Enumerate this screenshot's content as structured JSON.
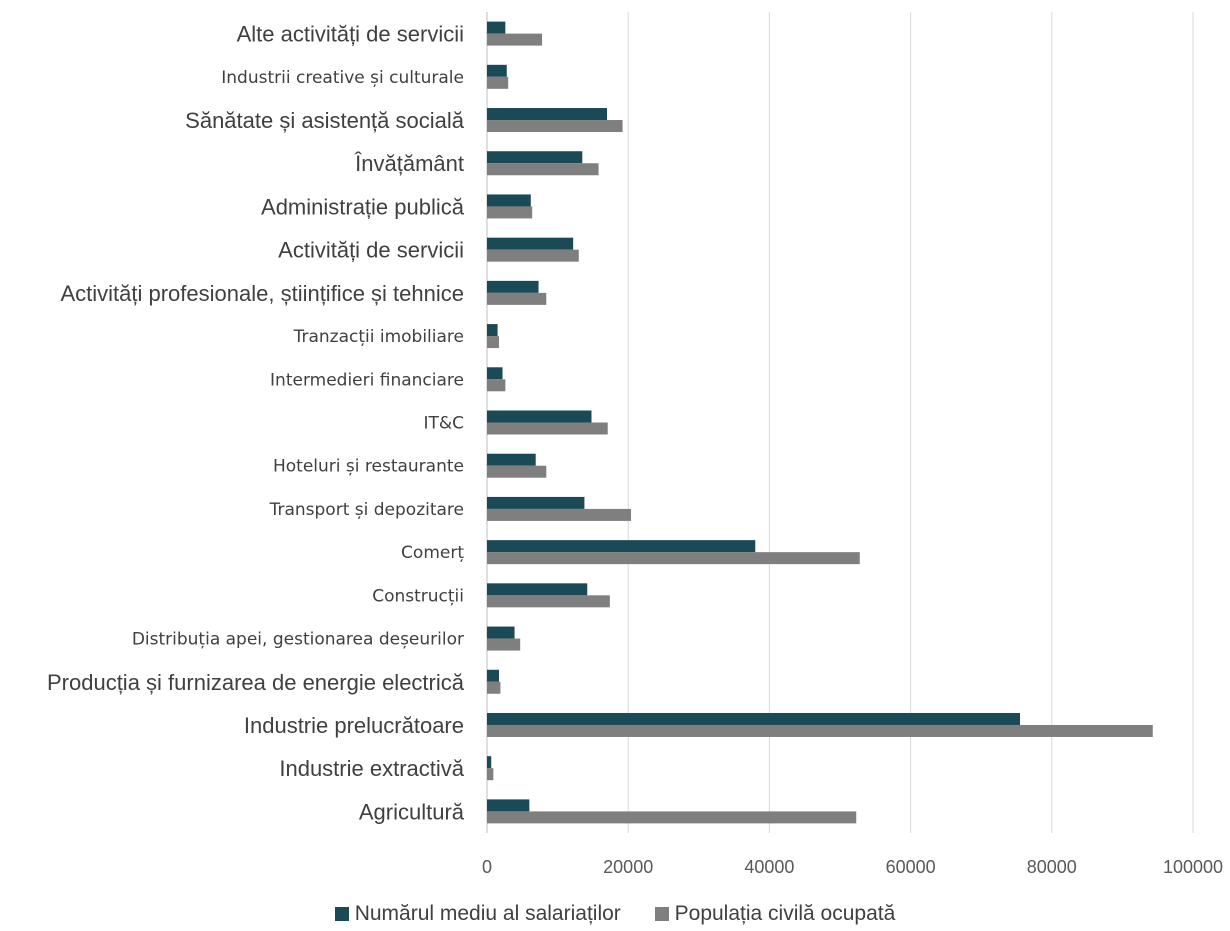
{
  "chart_data": {
    "type": "bar",
    "orientation": "horizontal",
    "categories": [
      "Alte activități de servicii",
      "Industrii creative și culturale",
      "Sănătate și asistență socială",
      "Învățământ",
      "Administrație publică",
      "Activități de servicii",
      "Activități profesionale, științifice și tehnice",
      "Tranzacții imobiliare",
      "Intermedieri financiare",
      "IT&C",
      "Hoteluri și restaurante",
      "Transport și depozitare",
      "Comerț",
      "Construcții",
      "Distribuția apei, gestionarea deșeurilor",
      "Producția și furnizarea de energie electrică",
      "Industrie prelucrătoare",
      "Industrie extractivă",
      "Agricultură"
    ],
    "series": [
      {
        "name": "Numărul mediu al salariaților",
        "color": "#1b4a57",
        "values": [
          2600,
          2800,
          17000,
          13500,
          6200,
          12200,
          7300,
          1500,
          2200,
          14800,
          6900,
          13800,
          38000,
          14200,
          3900,
          1700,
          75500,
          600,
          6000
        ]
      },
      {
        "name": "Populația civilă ocupată",
        "color": "#7f7f7f",
        "values": [
          7800,
          3000,
          19200,
          15800,
          6400,
          13000,
          8400,
          1700,
          2600,
          17100,
          8400,
          20400,
          52800,
          17400,
          4700,
          1900,
          94300,
          900,
          52300
        ]
      }
    ],
    "xlim": [
      0,
      100000
    ],
    "xticks": [
      "0",
      "20000",
      "40000",
      "60000",
      "80000",
      "100000"
    ],
    "grid": true,
    "legend_position": "bottom",
    "title": "",
    "xlabel": "",
    "ylabel": ""
  }
}
